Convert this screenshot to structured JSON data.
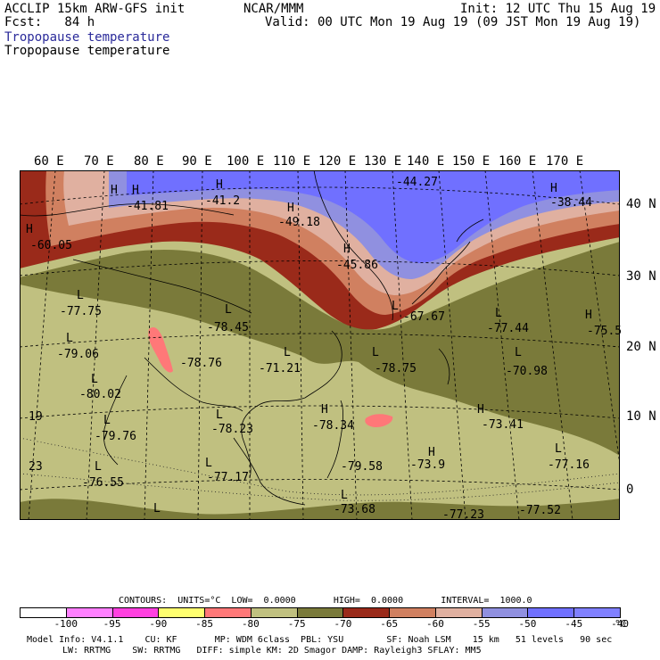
{
  "header": {
    "title": "ACCLIP 15km ARW-GFS init",
    "forecast": "Fcst:   84 h",
    "center": "NCAR/MMM",
    "init": "Init: 12 UTC Thu 15 Aug 19",
    "valid": "Valid: 00 UTC Mon 19 Aug 19 (09 JST Mon 19 Aug 19)",
    "field_blue": "Tropopause temperature",
    "field_black": "Tropopause temperature"
  },
  "lon_labels": [
    "60 E",
    "70 E",
    "80 E",
    "90 E",
    "100 E",
    "110 E",
    "120 E",
    "130 E",
    "140 E",
    "150 E",
    "160 E",
    "170 E"
  ],
  "lat_labels": [
    "40 N",
    "30 N",
    "20 N",
    "10 N",
    "0"
  ],
  "map_labels": {
    "highs": [
      "H",
      "H",
      "H",
      "H",
      "H",
      "H",
      "H",
      "H",
      "H",
      "H",
      "H"
    ],
    "lows": [
      "L",
      "L",
      "L",
      "L",
      "L",
      "L",
      "L",
      "L",
      "L",
      "L",
      "L",
      "L",
      "L",
      "L",
      "L",
      "L"
    ],
    "values": [
      "-41.81",
      "-41.2",
      "-49.18",
      "-44.27",
      "-38.44",
      "-60.05",
      "-45.86",
      "-77.75",
      "-78.45",
      "-79.06",
      "-71.21",
      "-78.76",
      "-78.75",
      "-67.67",
      "-77.44",
      "-75.5",
      "-70.98",
      "-80.02",
      "-78.34",
      "-73.41",
      "-79.76",
      "-78.23",
      "-73.9",
      "-77.16",
      "-76.55",
      "-77.17",
      "-79.58",
      "-73.68",
      "-77.23",
      "-77.52",
      "19",
      "23"
    ]
  },
  "colorbar": {
    "contours_line": "CONTOURS:  UNITS=°C  LOW=  0.0000       HIGH=  0.0000       INTERVAL=  1000.0",
    "ticks": [
      "-100",
      "-95",
      "-90",
      "-85",
      "-80",
      "-75",
      "-70",
      "-65",
      "-60",
      "-55",
      "-50",
      "-45",
      "-40",
      "°C"
    ],
    "colors": [
      "#ffffff",
      "#ff80ff",
      "#ff40e0",
      "#ffff70",
      "#ff7878",
      "#c0c080",
      "#7a7a3a",
      "#9a2a1a",
      "#d08060",
      "#e0b0a0",
      "#9090e0",
      "#7070ff",
      "#8080ff"
    ]
  },
  "footer": {
    "line1": "Model Info: V4.1.1    CU: KF       MP: WDM 6class  PBL: YSU        SF: Noah LSM    15 km   51 levels   90 sec",
    "line2": "LW: RRTMG    SW: RRTMG   DIFF: simple KM: 2D Smagor DAMP: Rayleigh3 SFLAY: MM5"
  }
}
